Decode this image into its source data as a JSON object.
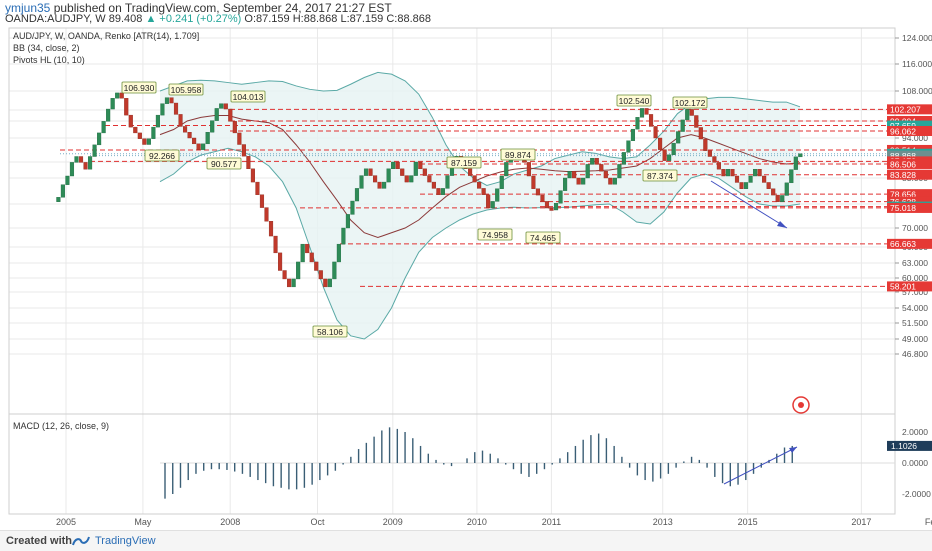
{
  "header": {
    "user": "ymjun35",
    "published": " published on TradingView.com, September 24, 2017 21:27 EST",
    "symbol": "OANDA:AUDJPY, W",
    "last": "89.408",
    "change": "+0.241 (+0.27%)",
    "o": "O:87.159",
    "h": "H:88.868",
    "l": "L:87.159",
    "c": "C:88.868"
  },
  "legend": {
    "title": "AUD/JPY, W, OANDA, Renko [ATR(14), 1.709]",
    "bb": "BB (34, close, 2)",
    "pivots": "Pivots HL (10, 10)",
    "macd": "MACD (12, 26, close, 9)"
  },
  "footer": {
    "created": "Created with",
    "brand": "TradingView"
  },
  "colors": {
    "up": "#2e8b57",
    "down": "#c0392b",
    "bb": "#5aa9a6",
    "basis": "#8b3a3a",
    "pivot_line": "#e03030",
    "badge_red": "#e53935",
    "badge_teal": "#26a69a",
    "grid": "#e9e9e9",
    "trend": "#4050c0"
  },
  "chart_data": [
    {
      "type": "candlestick",
      "name": "price",
      "x_ticks": [
        "2005",
        "May",
        "2008",
        "Oct",
        "2009",
        "2010",
        "2011",
        "2013",
        "2015",
        "2017",
        "Feb"
      ],
      "y_ticks": [
        "124.000",
        "116.000",
        "108.000",
        "102.000",
        "99.000",
        "94.000",
        "87.000",
        "83.000",
        "76.000",
        "70.000",
        "66.000",
        "63.000",
        "60.000",
        "57.000",
        "54.000",
        "51.500",
        "49.000",
        "46.800"
      ],
      "renko_path": [
        76.6,
        77.8,
        81.2,
        83.5,
        86.9,
        88.6,
        86.9,
        85.2,
        88.6,
        92.0,
        95.5,
        98.9,
        102.3,
        105.7,
        107.4,
        105.7,
        100.6,
        97.2,
        95.5,
        93.8,
        92.1,
        93.8,
        97.2,
        100.6,
        104.0,
        105.9,
        104.2,
        100.8,
        97.4,
        95.7,
        94.0,
        92.3,
        90.6,
        92.3,
        95.7,
        99.1,
        102.5,
        104.0,
        102.3,
        98.9,
        95.5,
        92.1,
        88.7,
        85.3,
        81.9,
        78.5,
        75.1,
        71.7,
        68.3,
        64.9,
        61.5,
        59.8,
        58.1,
        59.8,
        63.2,
        66.6,
        64.9,
        63.2,
        61.5,
        59.8,
        58.1,
        59.8,
        63.2,
        66.6,
        70.0,
        73.4,
        76.8,
        80.2,
        83.6,
        85.3,
        83.6,
        81.9,
        80.2,
        81.9,
        85.3,
        87.0,
        85.3,
        83.6,
        81.9,
        83.6,
        87.0,
        85.3,
        83.6,
        81.9,
        80.2,
        78.5,
        80.2,
        83.6,
        87.0,
        88.7,
        87.0,
        85.3,
        83.6,
        81.9,
        80.2,
        78.5,
        75.0,
        76.7,
        80.1,
        83.5,
        86.9,
        88.6,
        90.3,
        88.6,
        86.9,
        83.5,
        80.1,
        78.4,
        76.7,
        75.0,
        74.5,
        76.2,
        79.6,
        83.0,
        84.7,
        83.0,
        81.3,
        83.0,
        86.4,
        88.1,
        86.4,
        84.7,
        83.0,
        81.3,
        83.0,
        86.4,
        89.8,
        93.2,
        96.6,
        100.0,
        102.5,
        100.8,
        97.4,
        94.0,
        90.6,
        87.4,
        89.1,
        92.5,
        95.9,
        99.3,
        102.2,
        100.5,
        97.1,
        93.7,
        90.3,
        88.6,
        86.9,
        85.2,
        83.5,
        85.2,
        83.5,
        81.8,
        80.1,
        81.8,
        83.5,
        85.2,
        83.5,
        81.8,
        80.1,
        78.4,
        76.6,
        78.3,
        81.7,
        85.1,
        88.5,
        89.4
      ],
      "bb_upper": [
        108.0,
        109.5,
        111.0,
        111.2,
        111.0,
        110.5,
        110.0,
        110.5,
        111.0,
        110.8,
        109.5,
        108.5,
        108.0,
        108.2,
        110.0,
        112.0,
        113.5,
        113.0,
        111.0,
        107.0,
        100.0,
        92.0,
        86.0,
        83.0,
        81.0,
        82.0,
        84.0,
        85.0,
        86.0,
        88.0,
        89.0,
        90.0,
        89.5,
        88.5,
        88.0,
        88.5,
        92.0,
        96.0,
        101.0,
        104.0,
        105.5,
        106.0,
        106.0,
        105.5,
        105.0,
        104.5,
        104.5,
        103.0
      ],
      "bb_lower": [
        82.0,
        84.0,
        87.0,
        89.0,
        90.0,
        91.0,
        90.0,
        88.5,
        86.0,
        82.0,
        75.0,
        66.0,
        58.0,
        52.0,
        49.5,
        49.0,
        50.5,
        54.0,
        60.0,
        65.0,
        68.0,
        70.0,
        72.0,
        73.5,
        74.5,
        75.0,
        75.2,
        75.0,
        75.1,
        75.1,
        75.2,
        75.5,
        75.8,
        76.0,
        74.0,
        71.5,
        71.0,
        74.0,
        79.0,
        83.0,
        84.0,
        83.0,
        80.5,
        78.0,
        76.0,
        75.5,
        75.5,
        76.0
      ],
      "bb_basis": [
        95.0,
        96.5,
        99.0,
        100.0,
        100.5,
        100.5,
        99.5,
        99.0,
        98.5,
        96.5,
        92.0,
        87.0,
        82.0,
        77.0,
        72.0,
        69.0,
        68.0,
        69.0,
        70.0,
        72.0,
        75.0,
        78.0,
        80.5,
        82.0,
        83.5,
        84.5,
        85.2,
        85.5,
        85.2,
        84.8,
        84.6,
        84.7,
        84.8,
        85.0,
        85.5,
        86.0,
        88.0,
        91.0,
        94.0,
        95.0,
        94.0,
        92.5,
        91.0,
        89.5,
        88.0,
        87.0,
        86.5,
        86.8
      ],
      "pivot_highs": [
        "106.930",
        "105.958",
        "104.013",
        "87.159",
        "89.874",
        "102.540",
        "102.172"
      ],
      "pivot_lows": [
        "92.266",
        "90.577",
        "58.106",
        "74.958",
        "74.465",
        "87.374"
      ],
      "horizontal_levels": [
        "102.207",
        "99.004",
        "97.659",
        "96.062",
        "90.514",
        "89.408",
        "88.868",
        "87.178",
        "86.506",
        "83.828",
        "78.656",
        "76.628",
        "75.352",
        "75.018",
        "66.663",
        "58.201"
      ]
    },
    {
      "type": "bar",
      "name": "MACD histogram",
      "y_ticks": [
        "2.0000",
        "0.0000",
        "-2.0000"
      ],
      "last_value": "1.1026",
      "values": [
        -2.3,
        -2.0,
        -1.6,
        -1.1,
        -0.7,
        -0.5,
        -0.4,
        -0.4,
        -0.45,
        -0.55,
        -0.7,
        -0.9,
        -1.1,
        -1.3,
        -1.5,
        -1.6,
        -1.7,
        -1.7,
        -1.6,
        -1.4,
        -1.1,
        -0.8,
        -0.5,
        -0.1,
        0.4,
        0.9,
        1.3,
        1.7,
        2.1,
        2.3,
        2.2,
        2.0,
        1.6,
        1.1,
        0.6,
        0.2,
        -0.1,
        -0.2,
        0.0,
        0.3,
        0.7,
        0.8,
        0.6,
        0.3,
        -0.1,
        -0.4,
        -0.7,
        -0.9,
        -0.7,
        -0.4,
        -0.1,
        0.3,
        0.7,
        1.1,
        1.5,
        1.8,
        1.9,
        1.6,
        1.1,
        0.4,
        -0.3,
        -0.8,
        -1.1,
        -1.2,
        -1.0,
        -0.7,
        -0.3,
        0.1,
        0.4,
        0.2,
        -0.3,
        -0.9,
        -1.3,
        -1.5,
        -1.4,
        -1.1,
        -0.7,
        -0.3,
        0.2,
        0.6,
        1.0,
        1.1
      ]
    }
  ]
}
